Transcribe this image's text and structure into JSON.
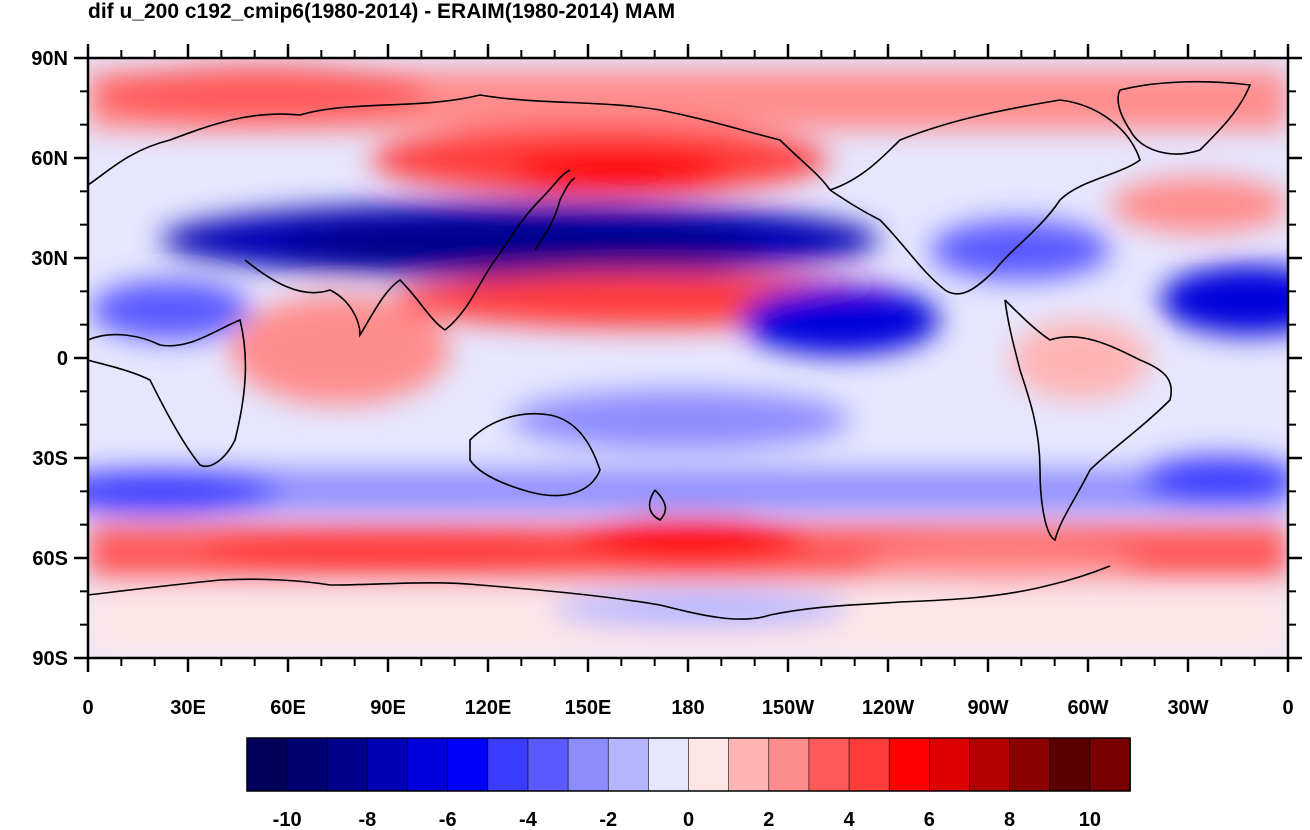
{
  "title": "dif u_200 c192_cmip6(1980-2014) - ERAIM(1980-2014) MAM",
  "map": {
    "projection": "cylindrical equidistant",
    "center_longitude": 180,
    "lat_labels": [
      "90N",
      "60N",
      "30N",
      "0",
      "30S",
      "60S",
      "90S"
    ],
    "lon_labels": [
      "0",
      "30E",
      "60E",
      "90E",
      "120E",
      "150E",
      "180",
      "150W",
      "120W",
      "90W",
      "60W",
      "30W",
      "0"
    ],
    "coastlines": true
  },
  "colorbar": {
    "tick_labels": [
      "-10",
      "-8",
      "-6",
      "-4",
      "-2",
      "0",
      "2",
      "4",
      "6",
      "8",
      "10"
    ],
    "colors": [
      "#00005a",
      "#000073",
      "#00008c",
      "#0000b4",
      "#0000dc",
      "#0000ff",
      "#3c3cff",
      "#5a5aff",
      "#8c8cff",
      "#b4b4ff",
      "#e6e6ff",
      "#ffe6e6",
      "#ffb4b4",
      "#ff8c8c",
      "#ff5a5a",
      "#ff3c3c",
      "#ff0000",
      "#dc0000",
      "#b40000",
      "#8c0000",
      "#5a0000",
      "#780000"
    ]
  }
}
